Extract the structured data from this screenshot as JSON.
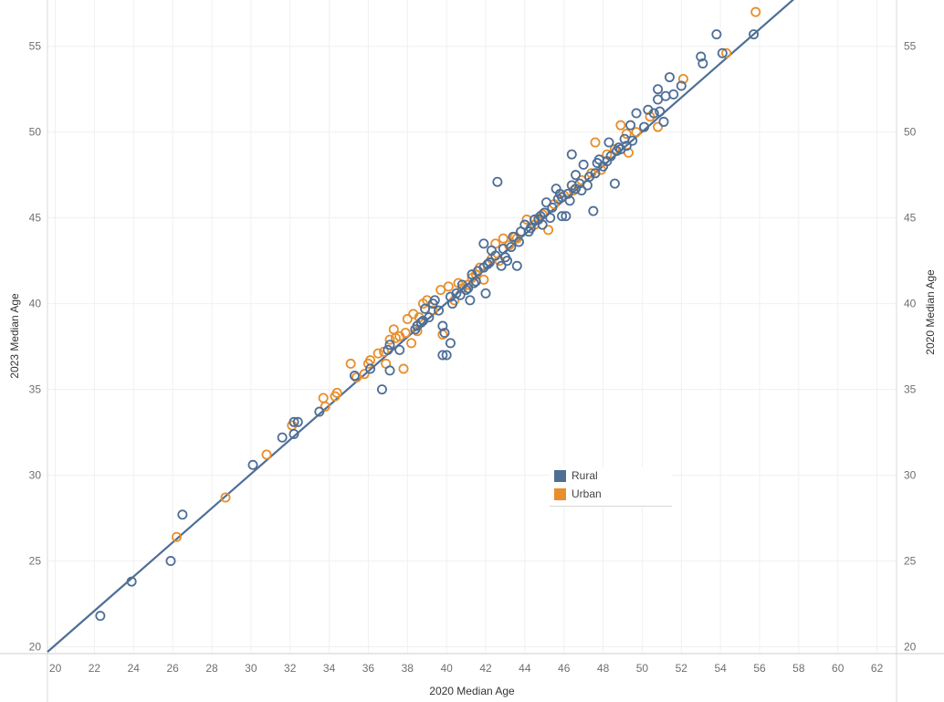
{
  "chart_data": {
    "type": "scatter",
    "title": "",
    "xlabel": "2020 Median Age",
    "ylabel": "2023 Median Age",
    "ylabel_right": "2020 Median Age",
    "xlim": [
      19.6,
      63
    ],
    "ylim": [
      19.6,
      57.7
    ],
    "x_ticks": [
      20,
      22,
      24,
      26,
      28,
      30,
      32,
      34,
      36,
      38,
      40,
      42,
      44,
      46,
      48,
      50,
      52,
      54,
      56,
      58,
      60,
      62
    ],
    "y_ticks": [
      20,
      25,
      30,
      35,
      40,
      45,
      50,
      55
    ],
    "y_ticks_right": [
      20,
      25,
      30,
      35,
      40,
      45,
      50,
      55
    ],
    "trend_line": {
      "x1": 19.6,
      "y1": 19.7,
      "x2": 57.8,
      "y2": 57.8
    },
    "legend": [
      {
        "name": "Rural",
        "color": "#4e6e96"
      },
      {
        "name": "Urban",
        "color": "#e88e2c"
      }
    ],
    "series": [
      {
        "name": "Rural",
        "color": "#4e6e96",
        "points": [
          [
            22.3,
            21.8
          ],
          [
            23.9,
            23.8
          ],
          [
            25.9,
            25.0
          ],
          [
            26.5,
            27.7
          ],
          [
            30.1,
            30.6
          ],
          [
            31.6,
            32.2
          ],
          [
            32.2,
            33.1
          ],
          [
            32.4,
            33.1
          ],
          [
            32.2,
            32.4
          ],
          [
            33.5,
            33.7
          ],
          [
            35.3,
            35.8
          ],
          [
            36.1,
            36.2
          ],
          [
            36.7,
            35.0
          ],
          [
            37.0,
            37.3
          ],
          [
            37.1,
            37.6
          ],
          [
            37.1,
            36.1
          ],
          [
            37.6,
            37.3
          ],
          [
            38.4,
            38.5
          ],
          [
            38.5,
            38.7
          ],
          [
            38.8,
            39.0
          ],
          [
            38.9,
            39.7
          ],
          [
            39.1,
            39.2
          ],
          [
            39.3,
            40.0
          ],
          [
            39.4,
            40.2
          ],
          [
            39.8,
            38.7
          ],
          [
            39.8,
            37.0
          ],
          [
            40.0,
            37.0
          ],
          [
            39.9,
            38.3
          ],
          [
            40.2,
            37.7
          ],
          [
            40.3,
            40.0
          ],
          [
            40.7,
            40.5
          ],
          [
            40.8,
            41.1
          ],
          [
            41.0,
            40.8
          ],
          [
            41.2,
            40.2
          ],
          [
            41.4,
            41.2
          ],
          [
            41.3,
            41.7
          ],
          [
            41.6,
            41.9
          ],
          [
            41.9,
            42.1
          ],
          [
            41.9,
            43.5
          ],
          [
            42.0,
            40.6
          ],
          [
            42.3,
            43.1
          ],
          [
            42.2,
            42.4
          ],
          [
            42.5,
            42.8
          ],
          [
            42.6,
            47.1
          ],
          [
            42.8,
            42.2
          ],
          [
            43.1,
            42.5
          ],
          [
            43.3,
            43.3
          ],
          [
            43.4,
            43.9
          ],
          [
            43.6,
            42.2
          ],
          [
            43.8,
            44.2
          ],
          [
            44.0,
            44.6
          ],
          [
            44.3,
            44.4
          ],
          [
            44.5,
            44.9
          ],
          [
            44.8,
            45.1
          ],
          [
            45.0,
            45.3
          ],
          [
            45.1,
            45.9
          ],
          [
            45.4,
            45.6
          ],
          [
            45.7,
            46.1
          ],
          [
            45.6,
            46.7
          ],
          [
            45.8,
            46.4
          ],
          [
            45.9,
            45.1
          ],
          [
            46.2,
            46.4
          ],
          [
            46.1,
            45.1
          ],
          [
            46.4,
            46.9
          ],
          [
            46.6,
            46.7
          ],
          [
            46.6,
            47.5
          ],
          [
            46.4,
            48.7
          ],
          [
            46.8,
            47.0
          ],
          [
            47.0,
            48.1
          ],
          [
            47.3,
            47.4
          ],
          [
            47.5,
            45.4
          ],
          [
            47.6,
            47.6
          ],
          [
            47.8,
            48.4
          ],
          [
            48.0,
            48.0
          ],
          [
            48.2,
            48.3
          ],
          [
            48.3,
            49.4
          ],
          [
            48.6,
            47.0
          ],
          [
            48.7,
            48.9
          ],
          [
            48.9,
            49.0
          ],
          [
            49.1,
            49.6
          ],
          [
            49.5,
            49.5
          ],
          [
            49.4,
            50.4
          ],
          [
            49.7,
            51.1
          ],
          [
            50.1,
            50.3
          ],
          [
            50.3,
            51.3
          ],
          [
            50.6,
            51.1
          ],
          [
            50.8,
            52.5
          ],
          [
            50.8,
            51.9
          ],
          [
            51.1,
            50.6
          ],
          [
            51.2,
            52.1
          ],
          [
            51.4,
            53.2
          ],
          [
            51.6,
            52.2
          ],
          [
            52.0,
            52.7
          ],
          [
            53.0,
            54.4
          ],
          [
            53.1,
            54.0
          ],
          [
            53.8,
            55.7
          ],
          [
            54.1,
            54.6
          ],
          [
            55.7,
            55.7
          ],
          [
            44.2,
            44.2
          ],
          [
            45.3,
            45.0
          ],
          [
            42.9,
            43.2
          ],
          [
            40.5,
            40.6
          ],
          [
            41.5,
            41.3
          ],
          [
            39.6,
            39.6
          ],
          [
            43.7,
            43.6
          ],
          [
            47.2,
            46.9
          ],
          [
            48.4,
            48.6
          ],
          [
            46.9,
            46.6
          ],
          [
            50.9,
            51.2
          ],
          [
            44.7,
            44.9
          ],
          [
            38.7,
            38.9
          ],
          [
            42.1,
            42.3
          ],
          [
            45.9,
            46.2
          ],
          [
            49.2,
            49.2
          ],
          [
            47.7,
            48.2
          ],
          [
            41.1,
            40.9
          ],
          [
            40.2,
            40.4
          ],
          [
            43.0,
            42.7
          ],
          [
            44.9,
            44.6
          ],
          [
            46.3,
            46.0
          ],
          [
            48.8,
            49.1
          ]
        ]
      },
      {
        "name": "Urban",
        "color": "#e88e2c",
        "points": [
          [
            26.2,
            26.4
          ],
          [
            28.7,
            28.7
          ],
          [
            30.8,
            31.2
          ],
          [
            32.1,
            32.9
          ],
          [
            33.7,
            34.5
          ],
          [
            33.8,
            34.0
          ],
          [
            34.3,
            34.6
          ],
          [
            34.4,
            34.8
          ],
          [
            35.1,
            36.5
          ],
          [
            35.4,
            35.7
          ],
          [
            35.8,
            35.9
          ],
          [
            36.0,
            36.5
          ],
          [
            36.1,
            36.7
          ],
          [
            36.5,
            37.1
          ],
          [
            36.8,
            37.2
          ],
          [
            36.9,
            36.5
          ],
          [
            37.1,
            37.9
          ],
          [
            37.3,
            38.5
          ],
          [
            37.4,
            38.0
          ],
          [
            37.6,
            38.1
          ],
          [
            37.8,
            36.2
          ],
          [
            37.9,
            38.3
          ],
          [
            38.0,
            39.1
          ],
          [
            38.2,
            37.7
          ],
          [
            38.3,
            39.4
          ],
          [
            38.5,
            38.4
          ],
          [
            38.6,
            39.2
          ],
          [
            38.8,
            40.0
          ],
          [
            39.0,
            40.2
          ],
          [
            39.3,
            39.6
          ],
          [
            39.7,
            40.8
          ],
          [
            39.8,
            38.2
          ],
          [
            40.1,
            41.0
          ],
          [
            40.4,
            40.2
          ],
          [
            40.6,
            41.2
          ],
          [
            41.1,
            41.1
          ],
          [
            41.5,
            41.7
          ],
          [
            41.7,
            42.1
          ],
          [
            41.9,
            41.4
          ],
          [
            42.3,
            42.6
          ],
          [
            42.5,
            43.5
          ],
          [
            42.9,
            43.8
          ],
          [
            43.2,
            43.4
          ],
          [
            43.5,
            43.9
          ],
          [
            43.8,
            44.2
          ],
          [
            44.1,
            44.9
          ],
          [
            44.5,
            44.6
          ],
          [
            44.9,
            45.2
          ],
          [
            45.2,
            44.3
          ],
          [
            45.5,
            45.8
          ],
          [
            46.0,
            46.3
          ],
          [
            46.5,
            46.6
          ],
          [
            46.9,
            47.2
          ],
          [
            47.4,
            47.6
          ],
          [
            47.6,
            49.4
          ],
          [
            47.9,
            47.8
          ],
          [
            48.2,
            48.7
          ],
          [
            48.6,
            49.0
          ],
          [
            48.9,
            50.4
          ],
          [
            49.2,
            49.9
          ],
          [
            49.3,
            48.8
          ],
          [
            49.7,
            50.0
          ],
          [
            50.4,
            50.9
          ],
          [
            50.8,
            50.3
          ],
          [
            52.1,
            53.1
          ],
          [
            54.3,
            54.6
          ],
          [
            55.8,
            57.0
          ],
          [
            41.3,
            41.5
          ],
          [
            43.6,
            43.8
          ],
          [
            44.7,
            45.0
          ],
          [
            40.8,
            40.9
          ],
          [
            42.7,
            42.5
          ]
        ]
      }
    ]
  }
}
